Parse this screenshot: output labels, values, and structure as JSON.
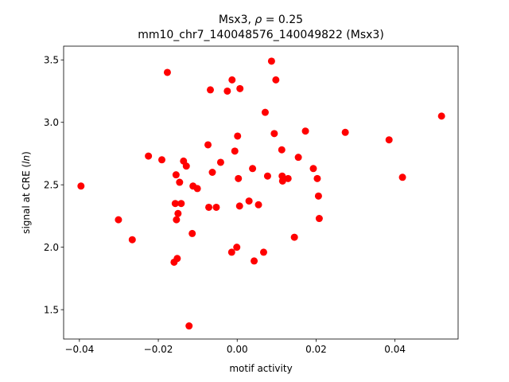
{
  "chart_data": {
    "type": "scatter",
    "title": "Msx3, ρ = 0.25",
    "title_prefix": "Msx3, ",
    "title_rho": "ρ",
    "title_suffix": " = 0.25",
    "subtitle": "mm10_chr7_140048576_140049822 (Msx3)",
    "xlabel": "motif activity",
    "ylabel_prefix": "signal at CRE (",
    "ylabel_italic": "ln",
    "ylabel_suffix": ")",
    "xlim": [
      -0.044,
      0.056
    ],
    "ylim": [
      1.265,
      3.61
    ],
    "xticks": [
      -0.04,
      -0.02,
      0.0,
      0.02,
      0.04
    ],
    "xtick_labels": [
      "−0.04",
      "−0.02",
      "0.00",
      "0.02",
      "0.04"
    ],
    "yticks": [
      1.5,
      2.0,
      2.5,
      3.0,
      3.5
    ],
    "ytick_labels": [
      "1.5",
      "2.0",
      "2.5",
      "3.0",
      "3.5"
    ],
    "grid": false,
    "marker_color": "#ff0000",
    "points": [
      {
        "x": -0.0396,
        "y": 2.49
      },
      {
        "x": -0.0301,
        "y": 2.22
      },
      {
        "x": -0.0266,
        "y": 2.06
      },
      {
        "x": -0.0225,
        "y": 2.73
      },
      {
        "x": -0.0191,
        "y": 2.7
      },
      {
        "x": -0.0177,
        "y": 3.4
      },
      {
        "x": -0.016,
        "y": 1.88
      },
      {
        "x": -0.0157,
        "y": 2.35
      },
      {
        "x": -0.0155,
        "y": 2.58
      },
      {
        "x": -0.0154,
        "y": 2.22
      },
      {
        "x": -0.0152,
        "y": 1.91
      },
      {
        "x": -0.015,
        "y": 2.27
      },
      {
        "x": -0.0146,
        "y": 2.52
      },
      {
        "x": -0.0142,
        "y": 2.35
      },
      {
        "x": -0.0136,
        "y": 2.69
      },
      {
        "x": -0.0129,
        "y": 2.65
      },
      {
        "x": -0.0122,
        "y": 1.37
      },
      {
        "x": -0.0114,
        "y": 2.11
      },
      {
        "x": -0.0112,
        "y": 2.49
      },
      {
        "x": -0.0101,
        "y": 2.47
      },
      {
        "x": -0.0074,
        "y": 2.82
      },
      {
        "x": -0.0072,
        "y": 2.32
      },
      {
        "x": -0.0068,
        "y": 3.26
      },
      {
        "x": -0.0063,
        "y": 2.6
      },
      {
        "x": -0.0053,
        "y": 2.32
      },
      {
        "x": -0.0042,
        "y": 2.68
      },
      {
        "x": -0.0025,
        "y": 3.25
      },
      {
        "x": -0.0014,
        "y": 1.96
      },
      {
        "x": -0.0013,
        "y": 3.34
      },
      {
        "x": -0.0006,
        "y": 2.77
      },
      {
        "x": -0.0001,
        "y": 2.0
      },
      {
        "x": 0.0001,
        "y": 2.89
      },
      {
        "x": 0.0003,
        "y": 2.55
      },
      {
        "x": 0.0006,
        "y": 2.33
      },
      {
        "x": 0.0007,
        "y": 3.27
      },
      {
        "x": 0.003,
        "y": 2.37
      },
      {
        "x": 0.0039,
        "y": 2.63
      },
      {
        "x": 0.0043,
        "y": 1.89
      },
      {
        "x": 0.0054,
        "y": 2.34
      },
      {
        "x": 0.0067,
        "y": 1.96
      },
      {
        "x": 0.0071,
        "y": 3.08
      },
      {
        "x": 0.0077,
        "y": 2.57
      },
      {
        "x": 0.0087,
        "y": 3.49
      },
      {
        "x": 0.0094,
        "y": 2.91
      },
      {
        "x": 0.0098,
        "y": 3.34
      },
      {
        "x": 0.0113,
        "y": 2.78
      },
      {
        "x": 0.0114,
        "y": 2.57
      },
      {
        "x": 0.0115,
        "y": 2.53
      },
      {
        "x": 0.0129,
        "y": 2.55
      },
      {
        "x": 0.0145,
        "y": 2.08
      },
      {
        "x": 0.0155,
        "y": 2.72
      },
      {
        "x": 0.0173,
        "y": 2.93
      },
      {
        "x": 0.0193,
        "y": 2.63
      },
      {
        "x": 0.0203,
        "y": 2.55
      },
      {
        "x": 0.0206,
        "y": 2.41
      },
      {
        "x": 0.0208,
        "y": 2.23
      },
      {
        "x": 0.0274,
        "y": 2.92
      },
      {
        "x": 0.0385,
        "y": 2.86
      },
      {
        "x": 0.0419,
        "y": 2.56
      },
      {
        "x": 0.0518,
        "y": 3.05
      }
    ]
  }
}
